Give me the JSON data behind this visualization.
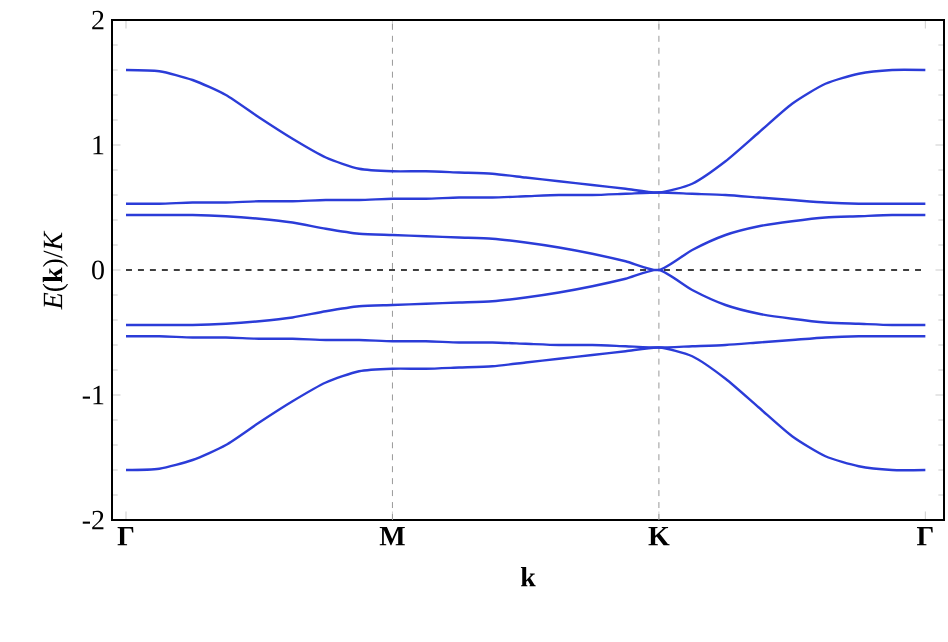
{
  "chart_data": {
    "type": "line",
    "xlabel": "k",
    "ylabel": "*E*(**k**)/*K*",
    "categories": [
      "Γ",
      null,
      null,
      null,
      null,
      null,
      null,
      null,
      "M",
      null,
      null,
      null,
      null,
      null,
      null,
      null,
      "K",
      null,
      null,
      null,
      null,
      null,
      null,
      null,
      "Γ"
    ],
    "ylim": [
      -2,
      2
    ],
    "yticks": [
      -2,
      -1,
      0,
      1,
      2
    ],
    "grid": false,
    "marker": "none",
    "line_style": "solid",
    "ref_lines": [
      {
        "axis": "x",
        "value": "M",
        "color": "#999999",
        "line_style": "dashed"
      },
      {
        "axis": "x",
        "value": "K",
        "color": "#999999",
        "line_style": "dashed"
      },
      {
        "axis": "y",
        "value": 0,
        "color": "#000000",
        "line_style": "dashed"
      }
    ],
    "series": [
      {
        "color": "#2b3cd8",
        "values": [
          1.6,
          1.59,
          1.52,
          1.4,
          1.22,
          1.05,
          0.9,
          0.81,
          0.79,
          0.79,
          0.78,
          0.77,
          0.74,
          0.71,
          0.68,
          0.65,
          0.62,
          0.69,
          0.87,
          1.1,
          1.33,
          1.49,
          1.57,
          1.6,
          1.6
        ]
      },
      {
        "color": "#2b3cd8",
        "values": [
          0.53,
          0.53,
          0.54,
          0.54,
          0.55,
          0.55,
          0.56,
          0.56,
          0.57,
          0.57,
          0.58,
          0.58,
          0.59,
          0.6,
          0.6,
          0.61,
          0.62,
          0.61,
          0.6,
          0.58,
          0.56,
          0.54,
          0.53,
          0.53,
          0.53
        ]
      },
      {
        "color": "#2b3cd8",
        "values": [
          0.44,
          0.44,
          0.44,
          0.43,
          0.41,
          0.38,
          0.33,
          0.29,
          0.28,
          0.27,
          0.26,
          0.25,
          0.22,
          0.18,
          0.13,
          0.07,
          0,
          0.16,
          0.28,
          0.35,
          0.39,
          0.42,
          0.43,
          0.44,
          0.44
        ]
      },
      {
        "color": "#2b3cd8",
        "values": [
          -0.44,
          -0.44,
          -0.44,
          -0.43,
          -0.41,
          -0.38,
          -0.33,
          -0.29,
          -0.28,
          -0.27,
          -0.26,
          -0.25,
          -0.22,
          -0.18,
          -0.13,
          -0.07,
          0,
          -0.16,
          -0.28,
          -0.35,
          -0.39,
          -0.42,
          -0.43,
          -0.44,
          -0.44
        ]
      },
      {
        "color": "#2b3cd8",
        "values": [
          -0.53,
          -0.53,
          -0.54,
          -0.54,
          -0.55,
          -0.55,
          -0.56,
          -0.56,
          -0.57,
          -0.57,
          -0.58,
          -0.58,
          -0.59,
          -0.6,
          -0.6,
          -0.61,
          -0.62,
          -0.61,
          -0.6,
          -0.58,
          -0.56,
          -0.54,
          -0.53,
          -0.53,
          -0.53
        ]
      },
      {
        "color": "#2b3cd8",
        "values": [
          -1.6,
          -1.59,
          -1.52,
          -1.4,
          -1.22,
          -1.05,
          -0.9,
          -0.81,
          -0.79,
          -0.79,
          -0.78,
          -0.77,
          -0.74,
          -0.71,
          -0.68,
          -0.65,
          -0.62,
          -0.69,
          -0.87,
          -1.1,
          -1.33,
          -1.49,
          -1.57,
          -1.6,
          -1.6
        ]
      }
    ]
  }
}
